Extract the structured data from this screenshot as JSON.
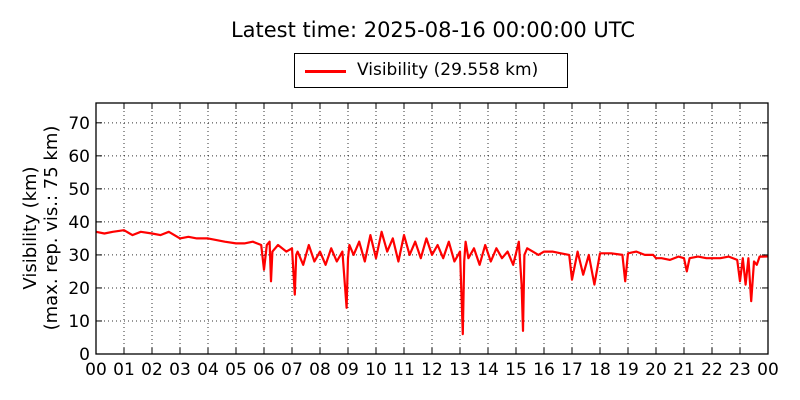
{
  "chart_data": {
    "type": "line",
    "title": "Latest time: 2025-08-16 00:00:00 UTC",
    "legend": {
      "placement": "top-center",
      "entries": [
        "Visibility (29.558 km)"
      ]
    },
    "ylabel_line1": "Visibility (km)",
    "ylabel_line2": "(max. rep. vis.: 75 km)",
    "xlabel": "",
    "xlim": [
      0,
      24
    ],
    "ylim": [
      0,
      76
    ],
    "grid": true,
    "xticks": [
      0,
      1,
      2,
      3,
      4,
      5,
      6,
      7,
      8,
      9,
      10,
      11,
      12,
      13,
      14,
      15,
      16,
      17,
      18,
      19,
      20,
      21,
      22,
      23,
      24
    ],
    "xtick_labels": [
      "00",
      "01",
      "02",
      "03",
      "04",
      "05",
      "06",
      "07",
      "08",
      "09",
      "10",
      "11",
      "12",
      "13",
      "14",
      "15",
      "16",
      "17",
      "18",
      "19",
      "20",
      "21",
      "22",
      "23",
      "00"
    ],
    "yticks": [
      0,
      10,
      20,
      30,
      40,
      50,
      60,
      70
    ],
    "ytick_labels": [
      "0",
      "10",
      "20",
      "30",
      "40",
      "50",
      "60",
      "70"
    ],
    "series": [
      {
        "name": "Visibility (29.558 km)",
        "color": "#ff0000",
        "x": [
          0,
          0.3,
          0.6,
          1,
          1.3,
          1.6,
          2,
          2.3,
          2.6,
          3,
          3.3,
          3.6,
          4,
          4.3,
          4.6,
          5,
          5.3,
          5.6,
          5.9,
          6.0,
          6.1,
          6.2,
          6.25,
          6.3,
          6.5,
          6.8,
          7.0,
          7.1,
          7.15,
          7.2,
          7.4,
          7.6,
          7.8,
          8.0,
          8.2,
          8.4,
          8.6,
          8.8,
          8.95,
          9.0,
          9.05,
          9.2,
          9.4,
          9.6,
          9.8,
          10.0,
          10.2,
          10.4,
          10.6,
          10.8,
          11.0,
          11.2,
          11.4,
          11.6,
          11.8,
          12.0,
          12.2,
          12.4,
          12.6,
          12.8,
          13.0,
          13.1,
          13.15,
          13.2,
          13.3,
          13.5,
          13.7,
          13.9,
          14.1,
          14.3,
          14.5,
          14.7,
          14.9,
          15.1,
          15.2,
          15.25,
          15.3,
          15.4,
          15.6,
          15.8,
          16.0,
          16.3,
          16.6,
          16.9,
          17.0,
          17.2,
          17.4,
          17.6,
          17.8,
          18.0,
          18.4,
          18.8,
          18.9,
          19.0,
          19.3,
          19.6,
          19.9,
          20.0,
          20.2,
          20.5,
          20.8,
          21.0,
          21.1,
          21.2,
          21.5,
          21.8,
          22.0,
          22.3,
          22.6,
          22.9,
          23.0,
          23.1,
          23.2,
          23.3,
          23.4,
          23.5,
          23.6,
          23.7,
          23.8,
          24.0
        ],
        "y": [
          37,
          36.5,
          37,
          37.5,
          36,
          37,
          36.5,
          36,
          37,
          35,
          35.5,
          35,
          35,
          34.5,
          34,
          33.5,
          33.5,
          34,
          33,
          25.5,
          33,
          34,
          22,
          31,
          33,
          31,
          32,
          18,
          30,
          31,
          27,
          33,
          28,
          31,
          27,
          32,
          28,
          31,
          14,
          29,
          33,
          30,
          34,
          28,
          36,
          29,
          37,
          31,
          35,
          28,
          36,
          30,
          34,
          29,
          35,
          30,
          33,
          29,
          34,
          28,
          31,
          6,
          28,
          34,
          29,
          32,
          27,
          33,
          28,
          32,
          29,
          31,
          27,
          34,
          21,
          7,
          30,
          32,
          31,
          30,
          31,
          31,
          30.5,
          30,
          22.5,
          31,
          24,
          30,
          21,
          30.5,
          30.5,
          30,
          22,
          30.5,
          31,
          30,
          30,
          29,
          29,
          28.5,
          29.5,
          29,
          25,
          29,
          29.5,
          29,
          29,
          29,
          29.5,
          28.5,
          22,
          29,
          21,
          29,
          16,
          28,
          27,
          29.5,
          29.5,
          29.558
        ]
      }
    ]
  }
}
